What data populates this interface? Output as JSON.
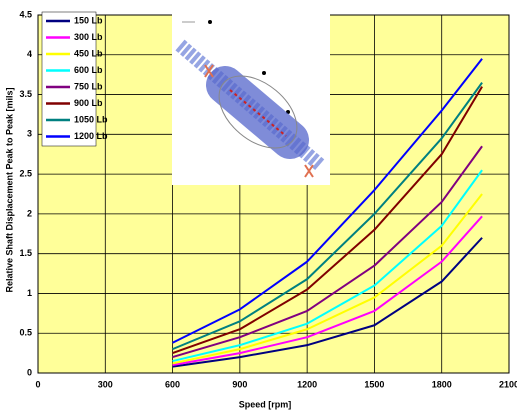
{
  "chart_data": {
    "type": "line",
    "x_label": "Speed [rpm]",
    "y_label": "Relative Shaft Displacement Peak to Peak [mils]",
    "x": [
      600,
      900,
      1200,
      1500,
      1800,
      1980
    ],
    "series": [
      {
        "name": "150 Lb",
        "color": "#000080",
        "values": [
          0.08,
          0.2,
          0.35,
          0.6,
          1.15,
          1.7
        ]
      },
      {
        "name": "300 Lb",
        "color": "#ff00ff",
        "values": [
          0.1,
          0.25,
          0.45,
          0.78,
          1.4,
          1.97
        ]
      },
      {
        "name": "450 Lb",
        "color": "#ffff00",
        "values": [
          0.12,
          0.3,
          0.55,
          0.95,
          1.6,
          2.25
        ]
      },
      {
        "name": "600 Lb",
        "color": "#00ffff",
        "values": [
          0.15,
          0.35,
          0.62,
          1.1,
          1.85,
          2.55
        ]
      },
      {
        "name": "750 Lb",
        "color": "#800080",
        "values": [
          0.2,
          0.45,
          0.78,
          1.35,
          2.15,
          2.85
        ]
      },
      {
        "name": "900 Lb",
        "color": "#800000",
        "values": [
          0.25,
          0.55,
          1.05,
          1.8,
          2.75,
          3.6
        ]
      },
      {
        "name": "1050 Lb",
        "color": "#008080",
        "values": [
          0.3,
          0.65,
          1.18,
          2.0,
          2.95,
          3.65
        ]
      },
      {
        "name": "1200 Lb",
        "color": "#0000ff",
        "values": [
          0.38,
          0.8,
          1.4,
          2.3,
          3.3,
          3.95
        ]
      }
    ],
    "xlim": [
      0,
      2100
    ],
    "xticks": [
      0,
      300,
      600,
      900,
      1200,
      1500,
      1800,
      2100
    ],
    "ylim": [
      0,
      4.5
    ],
    "yticks": [
      0,
      0.5,
      1,
      1.5,
      2,
      2.5,
      3,
      3.5,
      4,
      4.5
    ],
    "grid": true,
    "legend": "upper left",
    "background": "#ffff99"
  }
}
